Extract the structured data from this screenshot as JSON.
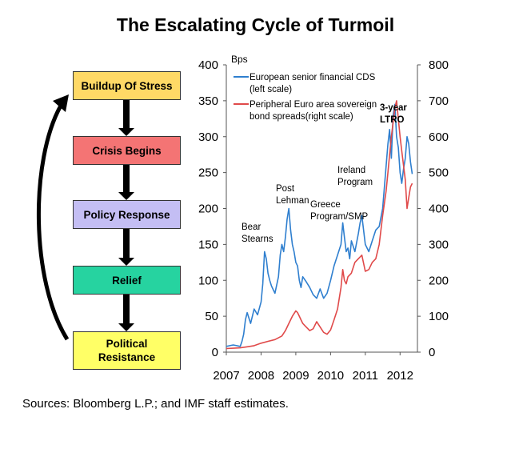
{
  "title": "The Escalating Cycle of Turmoil",
  "source": "Sources: Bloomberg L.P.; and IMF staff estimates.",
  "cycle": {
    "boxes": [
      {
        "label": "Buildup Of Stress",
        "color": "#ffd966"
      },
      {
        "label": "Crisis Begins",
        "color": "#f47474"
      },
      {
        "label": "Policy Response",
        "color": "#c4bef4"
      },
      {
        "label": "Relief",
        "color": "#26d3a0"
      },
      {
        "label": "Political\nResistance",
        "color": "#ffff66"
      }
    ]
  },
  "chart_data": {
    "type": "line",
    "unit_label": "Bps",
    "x_ticks": [
      "2007",
      "2008",
      "2009",
      "2010",
      "2011",
      "2012"
    ],
    "ylim_left": [
      0,
      400
    ],
    "y_ticks_left": [
      "0",
      "50",
      "100",
      "150",
      "200",
      "250",
      "300",
      "350",
      "400"
    ],
    "ylim_right": [
      0,
      800
    ],
    "y_ticks_right": [
      "0",
      "100",
      "200",
      "300",
      "400",
      "500",
      "600",
      "700",
      "800"
    ],
    "grid": false,
    "legend_position": "top-left",
    "series": [
      {
        "name": "European senior financial CDS\n(left scale)",
        "axis": "left",
        "color": "#2f7fcf",
        "x": [
          2007.0,
          2007.1,
          2007.2,
          2007.3,
          2007.4,
          2007.45,
          2007.5,
          2007.55,
          2007.6,
          2007.7,
          2007.8,
          2007.9,
          2008.0,
          2008.05,
          2008.1,
          2008.15,
          2008.2,
          2008.25,
          2008.3,
          2008.4,
          2008.5,
          2008.55,
          2008.6,
          2008.65,
          2008.7,
          2008.75,
          2008.8,
          2008.85,
          2008.9,
          2008.95,
          2009.0,
          2009.05,
          2009.1,
          2009.15,
          2009.2,
          2009.3,
          2009.4,
          2009.5,
          2009.6,
          2009.7,
          2009.8,
          2009.9,
          2010.0,
          2010.1,
          2010.2,
          2010.3,
          2010.35,
          2010.4,
          2010.45,
          2010.5,
          2010.55,
          2010.6,
          2010.7,
          2010.8,
          2010.85,
          2010.9,
          2011.0,
          2011.1,
          2011.2,
          2011.3,
          2011.4,
          2011.5,
          2011.55,
          2011.6,
          2011.65,
          2011.7,
          2011.75,
          2011.8,
          2011.85,
          2011.9,
          2011.95,
          2012.0,
          2012.05,
          2012.1,
          2012.15,
          2012.2,
          2012.25,
          2012.3,
          2012.35
        ],
        "y": [
          8,
          9,
          10,
          9,
          8,
          15,
          25,
          45,
          55,
          40,
          60,
          52,
          70,
          95,
          140,
          130,
          110,
          100,
          92,
          82,
          105,
          135,
          150,
          140,
          160,
          185,
          200,
          170,
          150,
          140,
          125,
          120,
          100,
          90,
          105,
          98,
          90,
          80,
          75,
          88,
          75,
          82,
          100,
          120,
          135,
          150,
          180,
          160,
          140,
          145,
          130,
          155,
          140,
          165,
          180,
          190,
          150,
          140,
          155,
          170,
          175,
          200,
          230,
          260,
          290,
          310,
          270,
          330,
          345,
          300,
          285,
          250,
          235,
          255,
          270,
          300,
          290,
          265,
          248
        ]
      },
      {
        "name": "Peripheral Euro area sovereign\nbond spreads(right scale)",
        "axis": "right",
        "color": "#e04a4a",
        "x": [
          2007.0,
          2007.2,
          2007.4,
          2007.6,
          2007.8,
          2008.0,
          2008.2,
          2008.4,
          2008.6,
          2008.7,
          2008.8,
          2008.9,
          2009.0,
          2009.05,
          2009.1,
          2009.15,
          2009.2,
          2009.3,
          2009.4,
          2009.5,
          2009.6,
          2009.7,
          2009.8,
          2009.9,
          2010.0,
          2010.1,
          2010.2,
          2010.3,
          2010.35,
          2010.4,
          2010.45,
          2010.5,
          2010.6,
          2010.7,
          2010.8,
          2010.9,
          2011.0,
          2011.1,
          2011.2,
          2011.3,
          2011.4,
          2011.5,
          2011.6,
          2011.65,
          2011.7,
          2011.75,
          2011.8,
          2011.85,
          2011.9,
          2011.95,
          2012.0,
          2012.05,
          2012.1,
          2012.15,
          2012.2,
          2012.25,
          2012.3,
          2012.35
        ],
        "y": [
          10,
          11,
          12,
          15,
          18,
          25,
          30,
          35,
          45,
          60,
          80,
          100,
          115,
          110,
          100,
          90,
          80,
          70,
          60,
          65,
          85,
          70,
          55,
          50,
          62,
          90,
          120,
          180,
          230,
          200,
          190,
          210,
          220,
          250,
          260,
          270,
          225,
          230,
          250,
          260,
          300,
          380,
          450,
          500,
          550,
          600,
          640,
          680,
          700,
          650,
          600,
          560,
          520,
          480,
          400,
          430,
          460,
          470
        ]
      }
    ],
    "annotations": [
      "Bear\nStearns",
      "Post\nLehman",
      "Greece\nProgram/SMP",
      "Ireland\nProgram",
      "3-year\nLTRO"
    ]
  }
}
